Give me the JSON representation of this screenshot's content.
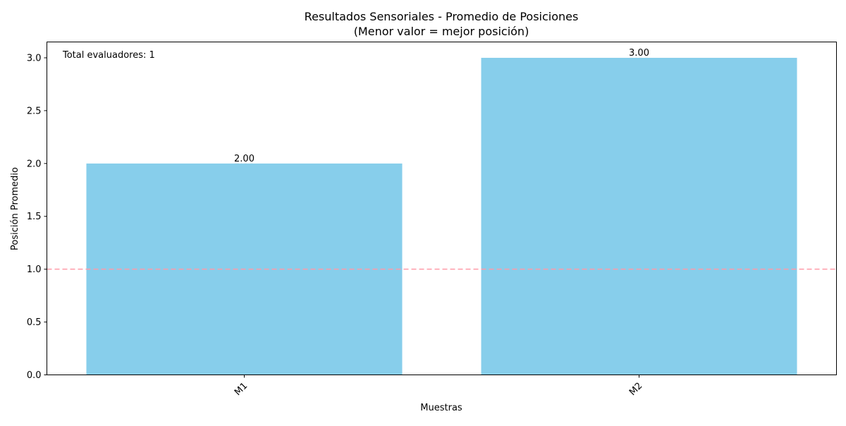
{
  "chart_data": {
    "type": "bar",
    "title": "Resultados Sensoriales - Promedio de Posiciones",
    "subtitle": "(Menor valor = mejor posición)",
    "xlabel": "Muestras",
    "ylabel": "Posición Promedio",
    "categories": [
      "M1",
      "M2"
    ],
    "values": [
      2.0,
      3.0
    ],
    "value_labels": [
      "2.00",
      "3.00"
    ],
    "ylim": [
      0,
      3.15
    ],
    "yticks": [
      0.0,
      0.5,
      1.0,
      1.5,
      2.0,
      2.5,
      3.0
    ],
    "ytick_labels": [
      "0.0",
      "0.5",
      "1.0",
      "1.5",
      "2.0",
      "2.5",
      "3.0"
    ],
    "reference_line": {
      "y": 1.0,
      "color": "#ff9aa8",
      "style": "dashed"
    },
    "annotation": "Total evaluadores: 1",
    "bar_color": "#87ceeb",
    "grid": false,
    "legend": "none"
  }
}
